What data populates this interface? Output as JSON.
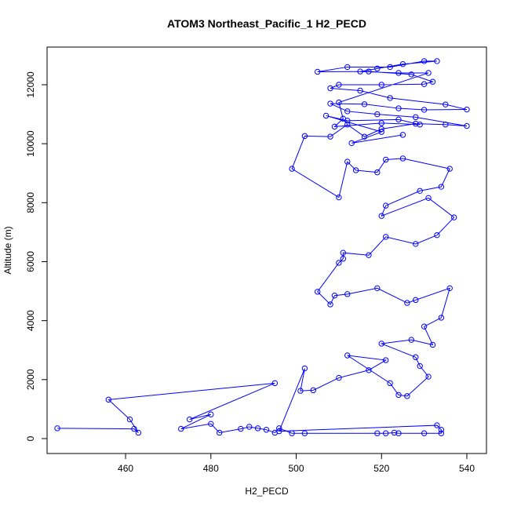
{
  "chart_data": {
    "type": "line",
    "title": "ATOM3 Northeast_Pacific_1 H2_PECD",
    "x_label": "H2_PECD",
    "y_label": "Altitude (m)",
    "color": "#0000ff",
    "marker": "circle",
    "x": [
      444,
      462,
      463,
      461,
      456,
      495,
      475,
      480,
      473,
      480,
      482,
      487,
      489,
      491,
      493,
      495,
      496,
      499,
      502,
      519,
      521,
      523,
      524,
      530,
      534,
      534,
      533,
      496,
      502,
      501,
      504,
      510,
      517,
      521,
      512,
      522,
      524,
      526,
      531,
      529,
      528,
      520,
      527,
      532,
      530,
      534,
      536,
      528,
      526,
      519,
      512,
      509,
      508,
      505,
      510,
      511,
      511,
      517,
      521,
      528,
      533,
      537,
      531,
      520,
      521,
      529,
      534,
      536,
      525,
      521,
      519,
      514,
      512,
      510,
      499,
      502,
      508,
      512,
      516,
      520,
      528,
      535,
      540,
      528,
      519,
      512,
      508,
      516,
      524,
      530,
      540,
      535,
      522,
      515,
      508,
      510,
      520,
      530,
      532,
      527,
      517,
      505,
      512,
      522,
      530,
      533,
      525,
      519,
      515,
      524,
      531,
      510,
      511,
      509,
      520,
      529,
      524,
      512,
      507,
      520,
      513,
      525
    ],
    "values": [
      350,
      330,
      200,
      650,
      1320,
      1880,
      650,
      820,
      330,
      500,
      200,
      330,
      400,
      350,
      300,
      200,
      350,
      180,
      180,
      180,
      180,
      200,
      180,
      180,
      180,
      300,
      450,
      250,
      2380,
      1620,
      1640,
      2060,
      2320,
      2660,
      2820,
      1880,
      1480,
      1440,
      2100,
      2460,
      2760,
      3220,
      3350,
      3180,
      3800,
      4100,
      5100,
      4700,
      4600,
      5100,
      4900,
      4850,
      4550,
      4980,
      5960,
      6100,
      6300,
      6220,
      6840,
      6600,
      6900,
      7500,
      8160,
      7550,
      7900,
      8400,
      8540,
      9150,
      9500,
      9460,
      9030,
      9100,
      9390,
      8180,
      9150,
      10260,
      10240,
      10650,
      10240,
      10500,
      10680,
      10650,
      10600,
      10900,
      11000,
      11100,
      11360,
      11340,
      11200,
      11150,
      11160,
      11330,
      11550,
      11800,
      11880,
      12000,
      12000,
      12020,
      12100,
      12350,
      12450,
      12440,
      12600,
      12600,
      12800,
      12800,
      12700,
      12550,
      12450,
      12400,
      12400,
      11400,
      10850,
      10580,
      10700,
      10650,
      10820,
      10780,
      10950,
      10400,
      10020,
      10300
    ],
    "xlim": [
      441.6,
      544.6
    ],
    "ylim": [
      -506,
      13277
    ],
    "xticks": [
      460,
      480,
      500,
      520,
      540
    ],
    "yticks": [
      0,
      2000,
      4000,
      6000,
      8000,
      10000,
      12000
    ]
  }
}
